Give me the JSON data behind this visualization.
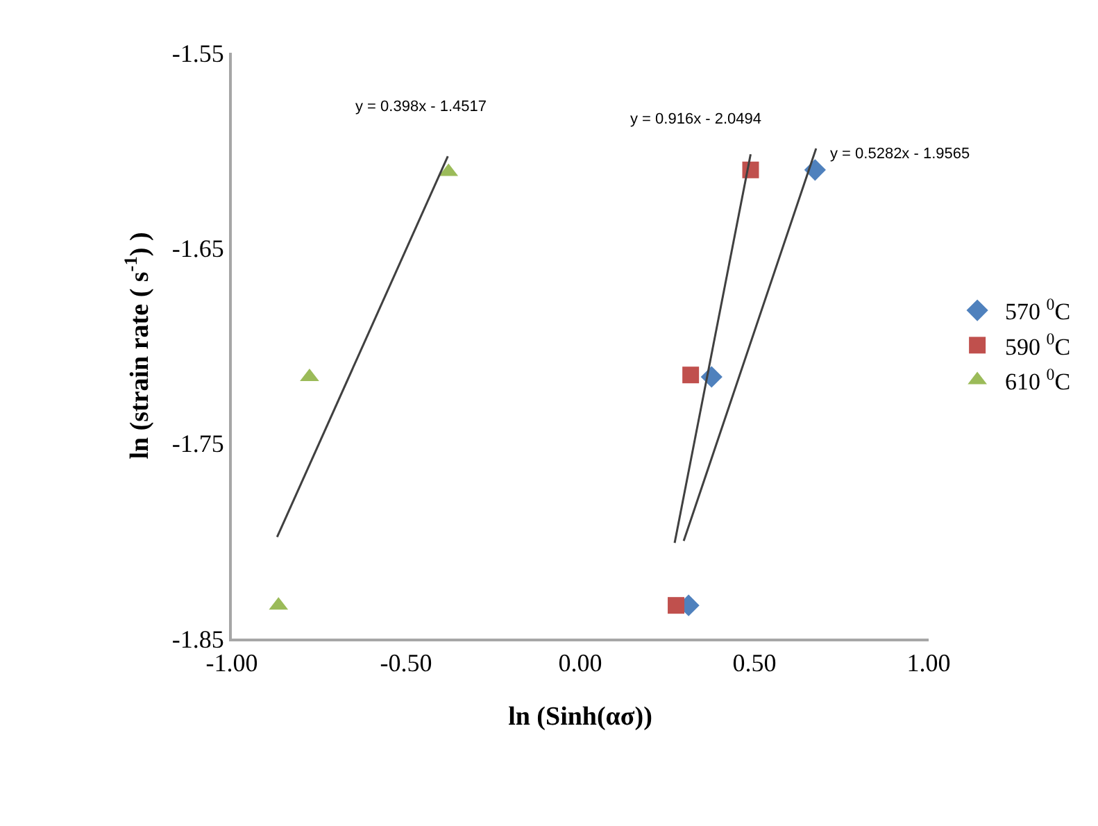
{
  "chart_data": {
    "type": "scatter",
    "xlabel": "ln (Sinh(ασ))",
    "ylabel": "ln (strain rate ( s$^{-1}$) )",
    "xlim": [
      -1,
      1
    ],
    "xticks": [
      {
        "value": -1,
        "label": "-1.00"
      },
      {
        "value": -0.5,
        "label": "-0.50"
      },
      {
        "value": 0,
        "label": "0.00"
      },
      {
        "value": 0.5,
        "label": "0.50"
      },
      {
        "value": 1,
        "label": "1.00"
      }
    ],
    "ylim": [
      -1.85,
      -1.55
    ],
    "yticks": [
      -1.55,
      -1.65,
      -1.75,
      -1.85
    ],
    "grid": false,
    "legend": "right",
    "series": [
      {
        "name": "570 $^{0}$C",
        "color": "#4f81bd",
        "marker": "diamond",
        "x": [
          0.311,
          0.377,
          0.674
        ],
        "values": [
          -1.833,
          -1.716,
          -1.61
        ]
      },
      {
        "name": "590 $^{0}$C",
        "color": "#c0504d",
        "marker": "square",
        "x": [
          0.275,
          0.317,
          0.489
        ],
        "values": [
          -1.833,
          -1.715,
          -1.61
        ]
      },
      {
        "name": "610 $^{0}$C",
        "color": "#9bbb59",
        "marker": "triangle",
        "x": [
          -0.866,
          -0.777,
          -0.378
        ],
        "values": [
          -1.833,
          -1.716,
          -1.611
        ]
      },
      {
        "type": "line",
        "color": "#404040",
        "marker": "none",
        "x": [
          -0.87,
          -0.38
        ],
        "values": [
          -1.798,
          -1.603
        ]
      },
      {
        "type": "line",
        "color": "#404040",
        "marker": "none",
        "x": [
          0.271,
          0.489
        ],
        "values": [
          -1.801,
          -1.602
        ]
      },
      {
        "type": "line",
        "color": "#404040",
        "marker": "none",
        "x": [
          0.297,
          0.677
        ],
        "values": [
          -1.8,
          -1.599
        ]
      }
    ],
    "annotations": [
      {
        "text": "y = 0.398x - 1.4517",
        "x": -0.38,
        "y": -1.603
      },
      {
        "text": "y = 0.916x - 2.0494",
        "x": 0.489,
        "y": -1.602
      },
      {
        "text": "y = 0.5282x - 1.9565",
        "x": 0.677,
        "y": -1.599
      }
    ]
  }
}
